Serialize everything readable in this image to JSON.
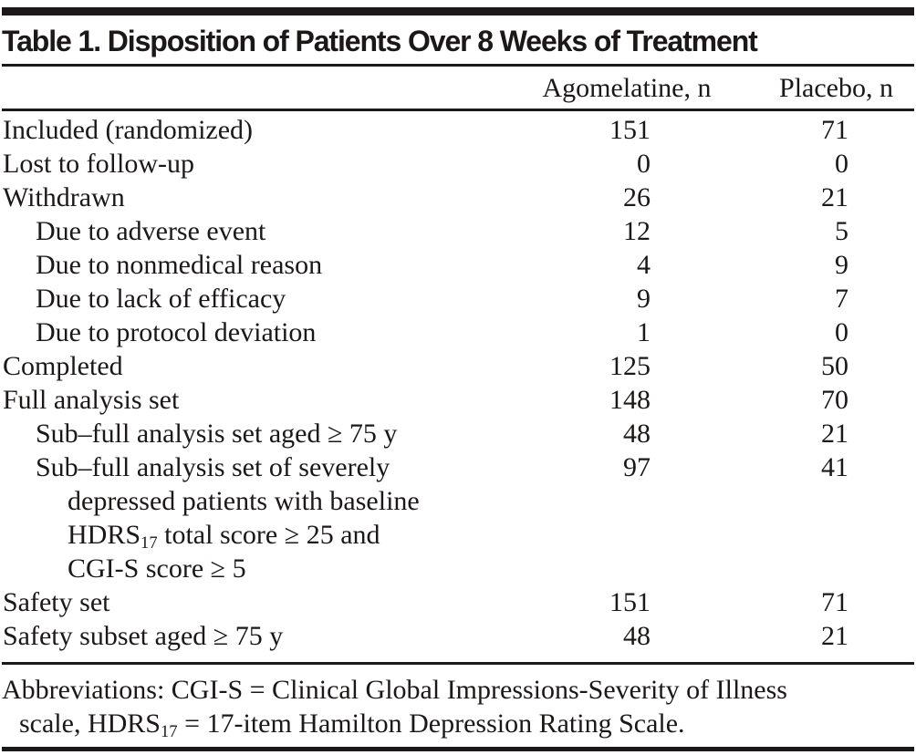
{
  "table": {
    "title": "Table 1. Disposition of Patients Over 8 Weeks of Treatment",
    "columns": [
      "Agomelatine, n",
      "Placebo, n"
    ],
    "rows": [
      {
        "indent": 0,
        "label": [
          "Included (randomized)"
        ],
        "values": [
          "151",
          "71"
        ]
      },
      {
        "indent": 0,
        "label": [
          "Lost to follow-up"
        ],
        "values": [
          "0",
          "0"
        ]
      },
      {
        "indent": 0,
        "label": [
          "Withdrawn"
        ],
        "values": [
          "26",
          "21"
        ]
      },
      {
        "indent": 1,
        "label": [
          "Due to adverse event"
        ],
        "values": [
          "12",
          "5"
        ]
      },
      {
        "indent": 1,
        "label": [
          "Due to nonmedical reason"
        ],
        "values": [
          "4",
          "9"
        ]
      },
      {
        "indent": 1,
        "label": [
          "Due to lack of efficacy"
        ],
        "values": [
          "9",
          "7"
        ]
      },
      {
        "indent": 1,
        "label": [
          "Due to protocol deviation"
        ],
        "values": [
          "1",
          "0"
        ]
      },
      {
        "indent": 0,
        "label": [
          "Completed"
        ],
        "values": [
          "125",
          "50"
        ]
      },
      {
        "indent": 0,
        "label": [
          "Full analysis set"
        ],
        "values": [
          "148",
          "70"
        ]
      },
      {
        "indent": 1,
        "label": [
          "Sub–full analysis set aged ≥ 75 y"
        ],
        "values": [
          "48",
          "21"
        ]
      },
      {
        "indent": 1,
        "label": [
          "Sub–full analysis set of severely",
          "depressed patients with baseline",
          "HDRS~17~ total score ≥ 25 and",
          "CGI-S score ≥ 5"
        ],
        "values": [
          "97",
          "41"
        ]
      },
      {
        "indent": 0,
        "label": [
          "Safety set"
        ],
        "values": [
          "151",
          "71"
        ]
      },
      {
        "indent": 0,
        "label": [
          "Safety subset aged ≥ 75 y"
        ],
        "values": [
          "48",
          "21"
        ]
      }
    ],
    "footnote": {
      "line1": "Abbreviations: CGI-S = Clinical Global Impressions-Severity of Illness",
      "line2": "scale, HDRS~17~ = 17-item Hamilton Depression Rating Scale."
    }
  }
}
